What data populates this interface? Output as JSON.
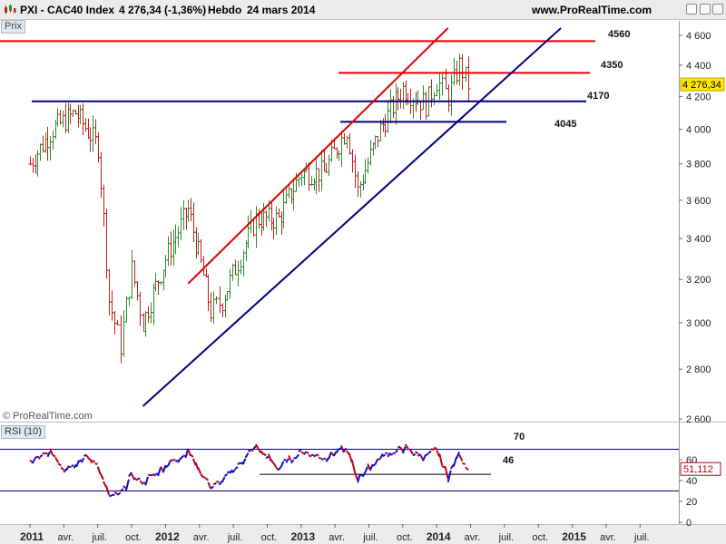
{
  "header": {
    "instrument": "PXI - CAC40 Index",
    "quote": "4 276,34 (-1,36%)",
    "period": "Hebdo",
    "date": "24 mars 2014",
    "site": "www.ProRealTime.com"
  },
  "labels": {
    "prix": "Prix",
    "rsi": "RSI (10)",
    "copyright": "© ProRealTime.com"
  },
  "colors": {
    "up": "#2e8b2e",
    "down": "#c02020",
    "resistance": "#e00000",
    "support": "#000080",
    "rsi_line_up": "#1010c8",
    "rsi_line_down": "#c00020",
    "price_box": "#ffe800"
  },
  "chart_data": [
    {
      "type": "ohlc",
      "title": "PXI - CAC40 Index",
      "x_tick_labels": [
        "2011",
        "avr.",
        "juil.",
        "oct.",
        "2012",
        "avr.",
        "juil.",
        "oct.",
        "2013",
        "avr.",
        "juil.",
        "oct.",
        "2014",
        "avr.",
        "juil.",
        "oct.",
        "2015",
        "avr.",
        "juil."
      ],
      "y_ticks": [
        2600,
        2800,
        3000,
        3200,
        3400,
        3600,
        3800,
        4000,
        4200,
        4400,
        4600
      ],
      "y_tick_labels": [
        "2 600",
        "2 800",
        "3 000",
        "3 200",
        "3 400",
        "3 600",
        "3 800",
        "4 000",
        "4 200",
        "4 400",
        "4 600"
      ],
      "y_scale": "log",
      "ylim": [
        2590,
        4700
      ],
      "last_price": "4 276,34",
      "horizontal_levels": [
        {
          "value": 4560,
          "label": "4560",
          "color": "red"
        },
        {
          "value": 4350,
          "label": "4350",
          "color": "red"
        },
        {
          "value": 4170,
          "label": "4170",
          "color": "navy"
        },
        {
          "value": 4045,
          "label": "4045",
          "color": "navy"
        }
      ],
      "trend_lines": [
        {
          "color": "red",
          "from": {
            "x": "2012-03",
            "y": 3180
          },
          "to": {
            "x": "2014-02",
            "y": 4650
          }
        },
        {
          "color": "navy",
          "from": {
            "x": "2011-11",
            "y": 2650
          },
          "to": {
            "x": "2014-12",
            "y": 4650
          }
        }
      ],
      "weekly_close_anchors": [
        {
          "x": "2011-01",
          "y": 3800
        },
        {
          "x": "2011-03",
          "y": 4000
        },
        {
          "x": "2011-05",
          "y": 4100
        },
        {
          "x": "2011-07",
          "y": 3900
        },
        {
          "x": "2011-08",
          "y": 3100
        },
        {
          "x": "2011-09",
          "y": 2900
        },
        {
          "x": "2011-10",
          "y": 3250
        },
        {
          "x": "2011-11",
          "y": 3000
        },
        {
          "x": "2012-01",
          "y": 3300
        },
        {
          "x": "2012-03",
          "y": 3550
        },
        {
          "x": "2012-05",
          "y": 3050
        },
        {
          "x": "2012-06",
          "y": 3100
        },
        {
          "x": "2012-09",
          "y": 3500
        },
        {
          "x": "2012-11",
          "y": 3500
        },
        {
          "x": "2013-01",
          "y": 3750
        },
        {
          "x": "2013-03",
          "y": 3750
        },
        {
          "x": "2013-05",
          "y": 4000
        },
        {
          "x": "2013-06",
          "y": 3650
        },
        {
          "x": "2013-08",
          "y": 4000
        },
        {
          "x": "2013-10",
          "y": 4250
        },
        {
          "x": "2013-12",
          "y": 4150
        },
        {
          "x": "2014-01",
          "y": 4300
        },
        {
          "x": "2014-02",
          "y": 4200
        },
        {
          "x": "2014-03",
          "y": 4400
        },
        {
          "x": "2014-03",
          "y": 4276
        }
      ]
    },
    {
      "type": "line",
      "title": "RSI (10)",
      "ylim": [
        0,
        80
      ],
      "y_ticks": [
        0,
        20,
        40,
        60
      ],
      "y_tick_labels": [
        "0",
        "20",
        "40",
        "60"
      ],
      "levels": [
        {
          "value": 70,
          "label": "70"
        },
        {
          "value": 46,
          "label": "46"
        },
        {
          "value": 30,
          "label": ""
        }
      ],
      "last_value": "51,112",
      "rsi_anchors": [
        {
          "x": "2011-01",
          "y": 58
        },
        {
          "x": "2011-03",
          "y": 67
        },
        {
          "x": "2011-04",
          "y": 52
        },
        {
          "x": "2011-06",
          "y": 62
        },
        {
          "x": "2011-07",
          "y": 56
        },
        {
          "x": "2011-08",
          "y": 24
        },
        {
          "x": "2011-09",
          "y": 26
        },
        {
          "x": "2011-10",
          "y": 45
        },
        {
          "x": "2011-11",
          "y": 38
        },
        {
          "x": "2012-01",
          "y": 54
        },
        {
          "x": "2012-03",
          "y": 68
        },
        {
          "x": "2012-05",
          "y": 34
        },
        {
          "x": "2012-06",
          "y": 38
        },
        {
          "x": "2012-09",
          "y": 73
        },
        {
          "x": "2012-11",
          "y": 52
        },
        {
          "x": "2013-01",
          "y": 68
        },
        {
          "x": "2013-03",
          "y": 62
        },
        {
          "x": "2013-05",
          "y": 70
        },
        {
          "x": "2013-06",
          "y": 42
        },
        {
          "x": "2013-08",
          "y": 62
        },
        {
          "x": "2013-10",
          "y": 71
        },
        {
          "x": "2013-12",
          "y": 62
        },
        {
          "x": "2014-01",
          "y": 69
        },
        {
          "x": "2014-02",
          "y": 44
        },
        {
          "x": "2014-03",
          "y": 65
        },
        {
          "x": "2014-03",
          "y": 51
        }
      ]
    }
  ]
}
